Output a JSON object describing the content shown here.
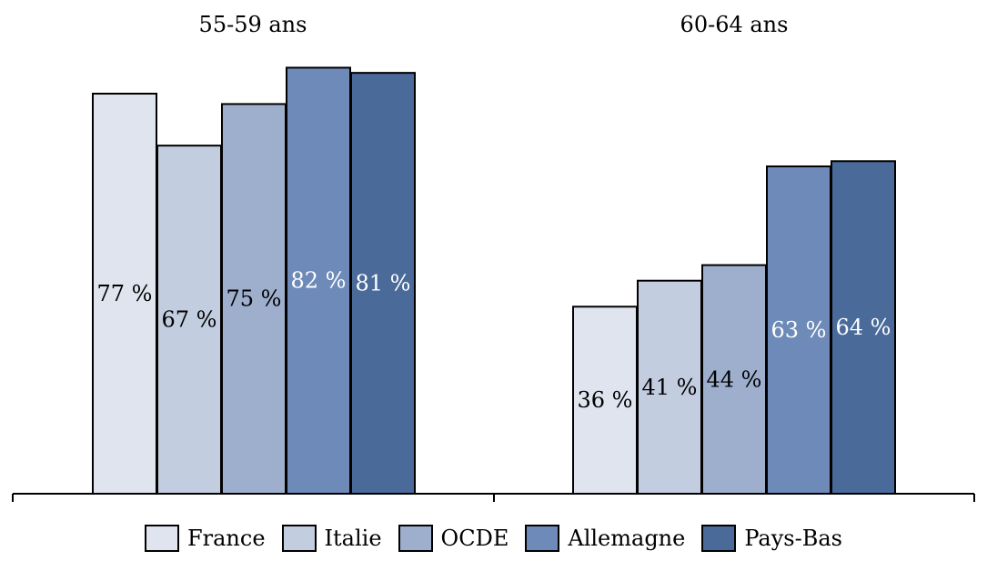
{
  "chart_data": {
    "type": "bar",
    "groups": [
      "55-59 ans",
      "60-64 ans"
    ],
    "series": [
      {
        "name": "France",
        "values": [
          77,
          36
        ],
        "labels": [
          "77 %",
          "36 %"
        ],
        "color": "#dfe4ee",
        "label_color": "#000000"
      },
      {
        "name": "Italie",
        "values": [
          67,
          41
        ],
        "labels": [
          "67 %",
          "41 %"
        ],
        "color": "#c3cde0",
        "label_color": "#000000"
      },
      {
        "name": "OCDE",
        "values": [
          75,
          44
        ],
        "labels": [
          "75 %",
          "44 %"
        ],
        "color": "#9eafce",
        "label_color": "#000000"
      },
      {
        "name": "Allemagne",
        "values": [
          82,
          63
        ],
        "labels": [
          "82 %",
          "63 %"
        ],
        "color": "#6d8ab9",
        "label_color": "#ffffff"
      },
      {
        "name": "Pays-Bas",
        "values": [
          81,
          64
        ],
        "labels": [
          "81 %",
          "64 %"
        ],
        "color": "#4a6a9a",
        "label_color": "#ffffff"
      }
    ],
    "ylim": [
      0,
      84
    ],
    "grid": false,
    "legend_position": "bottom"
  }
}
